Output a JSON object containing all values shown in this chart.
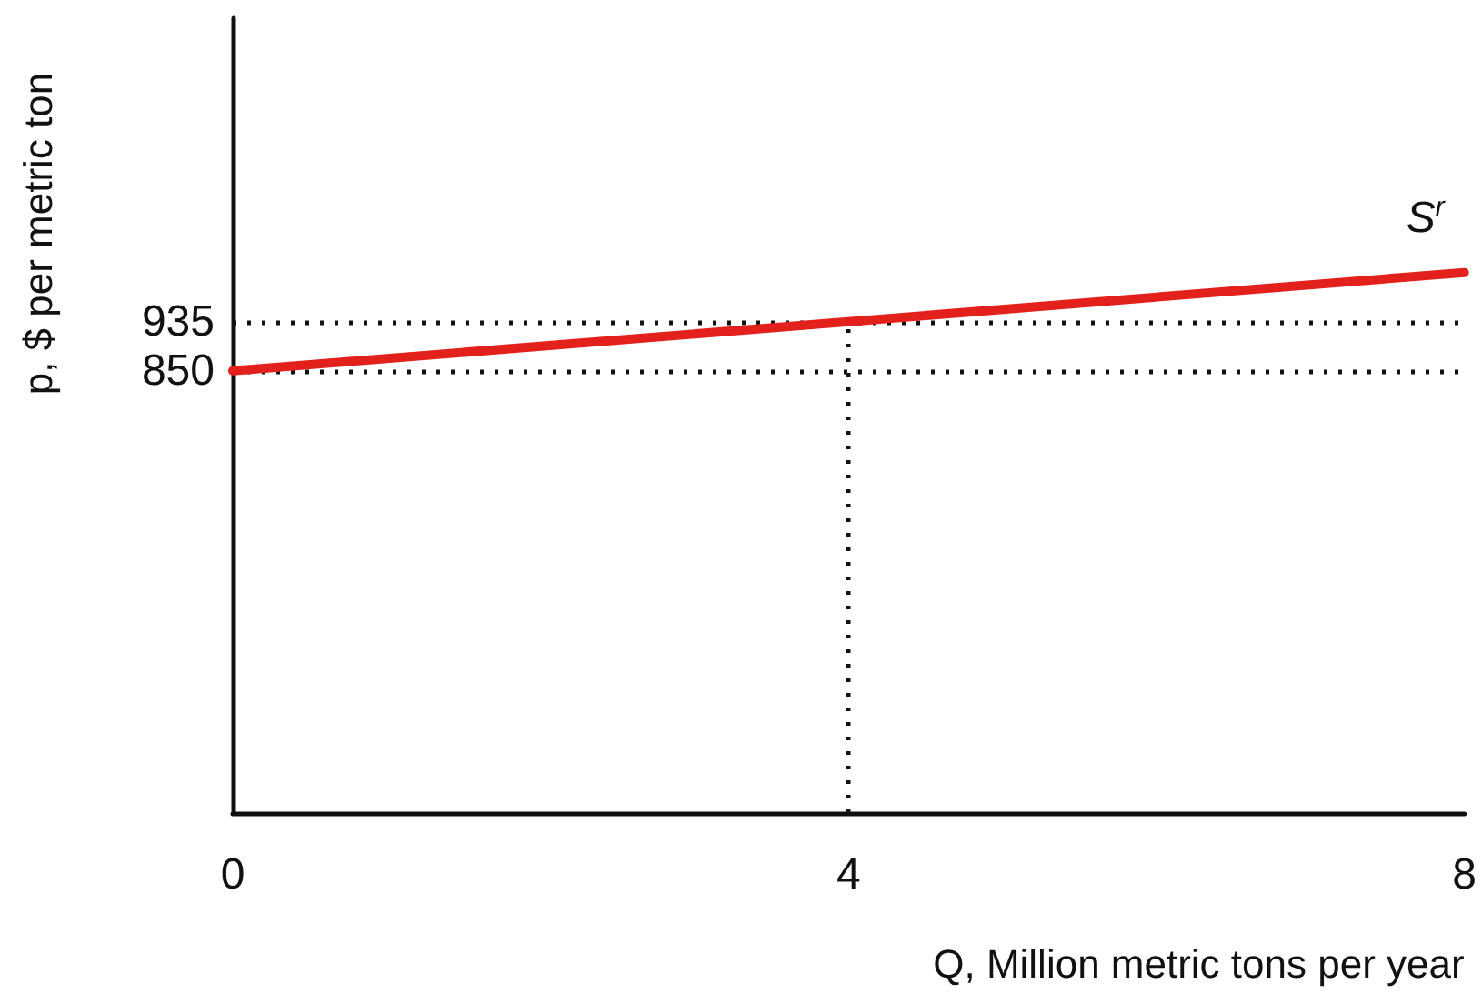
{
  "chart_data": {
    "type": "line",
    "xlabel": "Q, Million metric tons per year",
    "ylabel": "p, $ per metric ton",
    "x": [
      0,
      8
    ],
    "series": [
      {
        "name": "S$^{r}$",
        "color": "#e3211c",
        "values": [
          850,
          1020
        ]
      }
    ],
    "xlim": [
      0,
      8
    ],
    "xticks": [
      0,
      4,
      8
    ],
    "ylim": [
      85,
      1460
    ],
    "yticks": [
      850,
      935
    ],
    "ref_lines": [
      {
        "axis": "y",
        "value": 935,
        "line_style": "dotted"
      },
      {
        "axis": "y",
        "value": 850,
        "line_style": "dotted"
      },
      {
        "axis": "x",
        "value": 4,
        "line_style": "dotted"
      }
    ],
    "marker": "none",
    "grid": false
  }
}
